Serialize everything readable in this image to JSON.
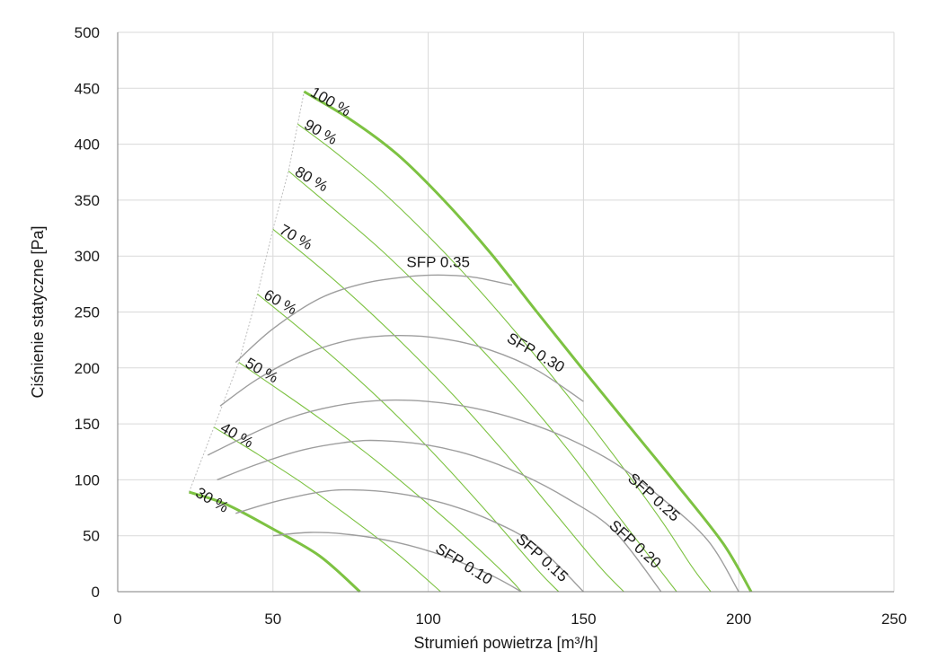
{
  "chart_data": {
    "type": "line",
    "xlabel": "Strumień powietrza [m³/h]",
    "ylabel": "Ciśnienie statyczne [Pa]",
    "xlim": [
      0,
      250
    ],
    "ylim": [
      0,
      500
    ],
    "x_ticks": [
      "0",
      "50",
      "100",
      "150",
      "200",
      "250"
    ],
    "y_ticks": [
      "0",
      "50",
      "100",
      "150",
      "200",
      "250",
      "300",
      "350",
      "400",
      "450",
      "500"
    ],
    "grid": true,
    "colors": {
      "fan": "#7dc242",
      "sfp": "#9e9e9e",
      "grid": "#d9d9d9",
      "envelope": "#bdbdbd",
      "axis": "#7f7f7f"
    },
    "fan_curves": [
      {
        "name": "100 %",
        "label": "100 %",
        "points": [
          [
            60,
            447
          ],
          [
            75,
            422
          ],
          [
            90,
            391
          ],
          [
            105,
            350
          ],
          [
            120,
            303
          ],
          [
            135,
            250
          ],
          [
            150,
            198
          ],
          [
            165,
            147
          ],
          [
            180,
            96
          ],
          [
            195,
            43
          ],
          [
            204,
            0
          ]
        ]
      },
      {
        "name": "90 %",
        "label": "90 %",
        "points": [
          [
            58,
            418
          ],
          [
            70,
            393
          ],
          [
            85,
            358
          ],
          [
            100,
            318
          ],
          [
            115,
            274
          ],
          [
            130,
            226
          ],
          [
            145,
            175
          ],
          [
            160,
            121
          ],
          [
            175,
            64
          ],
          [
            185,
            22
          ],
          [
            191,
            0
          ]
        ]
      },
      {
        "name": "80 %",
        "label": "80 %",
        "points": [
          [
            55,
            376
          ],
          [
            70,
            341
          ],
          [
            85,
            305
          ],
          [
            100,
            265
          ],
          [
            115,
            223
          ],
          [
            130,
            177
          ],
          [
            145,
            127
          ],
          [
            160,
            72
          ],
          [
            175,
            18
          ],
          [
            180,
            0
          ]
        ]
      },
      {
        "name": "70 %",
        "label": "70 %",
        "points": [
          [
            50,
            324
          ],
          [
            65,
            290
          ],
          [
            80,
            253
          ],
          [
            95,
            213
          ],
          [
            110,
            170
          ],
          [
            125,
            123
          ],
          [
            140,
            73
          ],
          [
            155,
            23
          ],
          [
            163,
            0
          ]
        ]
      },
      {
        "name": "60 %",
        "label": "60 %",
        "points": [
          [
            45,
            266
          ],
          [
            60,
            232
          ],
          [
            75,
            196
          ],
          [
            90,
            157
          ],
          [
            105,
            114
          ],
          [
            120,
            68
          ],
          [
            135,
            20
          ],
          [
            142,
            0
          ]
        ]
      },
      {
        "name": "50 %",
        "label": "50 %",
        "points": [
          [
            39,
            205
          ],
          [
            50,
            184
          ],
          [
            65,
            155
          ],
          [
            80,
            124
          ],
          [
            95,
            90
          ],
          [
            110,
            54
          ],
          [
            125,
            15
          ],
          [
            130,
            0
          ]
        ]
      },
      {
        "name": "40 %",
        "label": "40 %",
        "points": [
          [
            31,
            147
          ],
          [
            45,
            123
          ],
          [
            60,
            96
          ],
          [
            75,
            66
          ],
          [
            90,
            34
          ],
          [
            104,
            0
          ]
        ]
      },
      {
        "name": "30 %",
        "label": "30 %",
        "points": [
          [
            23,
            89
          ],
          [
            35,
            78
          ],
          [
            50,
            56
          ],
          [
            65,
            32
          ],
          [
            78,
            0
          ]
        ]
      }
    ],
    "sfp_curves": [
      {
        "name": "SFP 0.35",
        "label": "SFP  0.35",
        "points": [
          [
            38,
            205
          ],
          [
            50,
            235
          ],
          [
            65,
            262
          ],
          [
            80,
            276
          ],
          [
            95,
            282
          ],
          [
            105,
            283
          ],
          [
            115,
            281
          ],
          [
            127,
            274
          ]
        ]
      },
      {
        "name": "SFP 0.30",
        "label": "SFP  0.30",
        "points": [
          [
            33,
            166
          ],
          [
            45,
            190
          ],
          [
            60,
            212
          ],
          [
            75,
            225
          ],
          [
            90,
            229
          ],
          [
            105,
            226
          ],
          [
            120,
            216
          ],
          [
            135,
            198
          ],
          [
            150,
            170
          ]
        ]
      },
      {
        "name": "SFP 0.25",
        "label": "SFP  0.25",
        "points": [
          [
            29,
            122
          ],
          [
            40,
            137
          ],
          [
            55,
            155
          ],
          [
            70,
            166
          ],
          [
            85,
            171
          ],
          [
            100,
            170
          ],
          [
            115,
            164
          ],
          [
            130,
            153
          ],
          [
            145,
            137
          ],
          [
            160,
            115
          ],
          [
            175,
            84
          ],
          [
            190,
            46
          ],
          [
            200,
            0
          ]
        ]
      },
      {
        "name": "SFP 0.20",
        "label": "SFP  0.20",
        "points": [
          [
            32,
            100
          ],
          [
            45,
            114
          ],
          [
            60,
            127
          ],
          [
            75,
            134
          ],
          [
            85,
            135
          ],
          [
            100,
            131
          ],
          [
            115,
            121
          ],
          [
            130,
            105
          ],
          [
            145,
            83
          ],
          [
            160,
            54
          ],
          [
            175,
            0
          ]
        ]
      },
      {
        "name": "SFP 0.15",
        "label": "SFP  0.15",
        "points": [
          [
            38,
            70
          ],
          [
            50,
            80
          ],
          [
            65,
            89
          ],
          [
            75,
            91
          ],
          [
            90,
            88
          ],
          [
            105,
            79
          ],
          [
            120,
            64
          ],
          [
            135,
            41
          ],
          [
            150,
            0
          ]
        ]
      },
      {
        "name": "SFP 0.10",
        "label": "SFP  0.10",
        "points": [
          [
            50,
            50
          ],
          [
            62,
            53
          ],
          [
            75,
            51
          ],
          [
            90,
            44
          ],
          [
            105,
            32
          ],
          [
            120,
            15
          ],
          [
            130,
            0
          ]
        ]
      }
    ]
  }
}
